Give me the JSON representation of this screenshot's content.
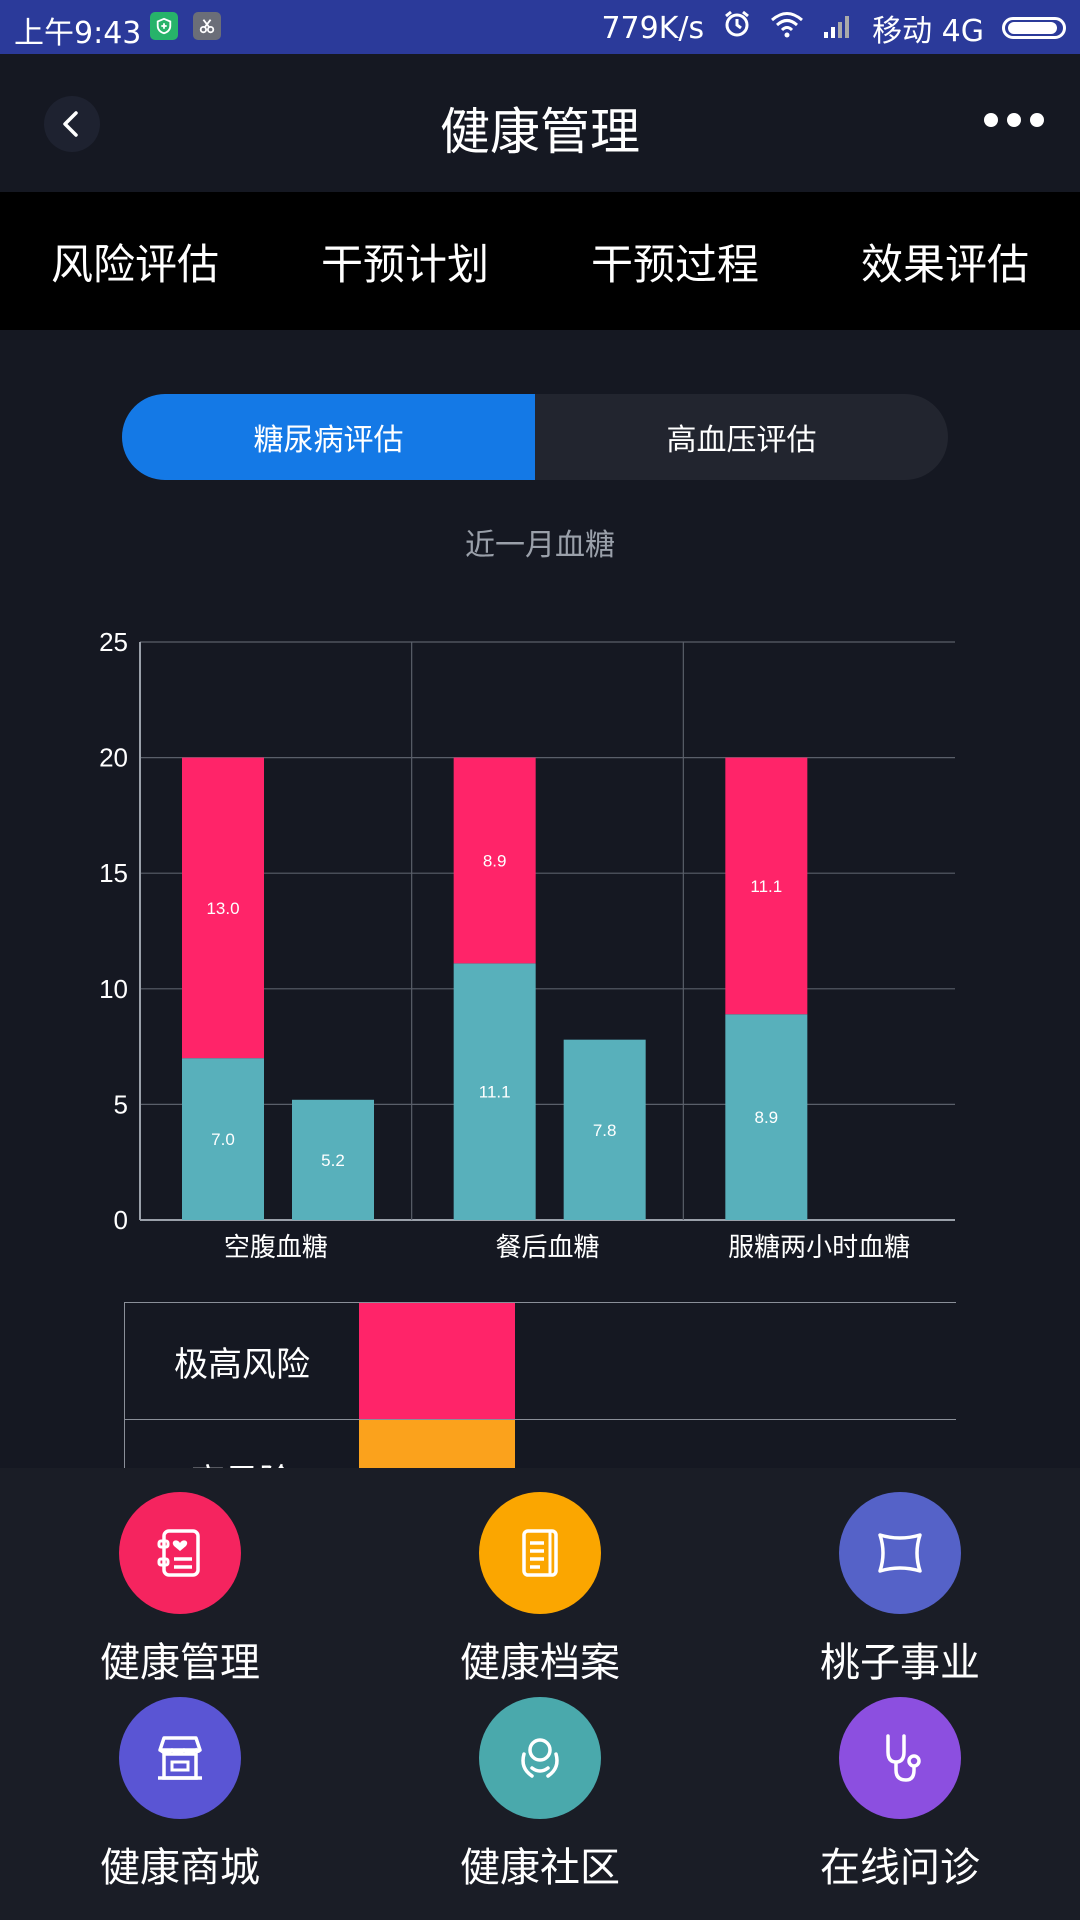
{
  "status_bar": {
    "time": "上午9:43",
    "speed": "779K/s",
    "carrier": "移动 4G"
  },
  "header": {
    "title": "健康管理"
  },
  "tabs": [
    {
      "label": "风险评估"
    },
    {
      "label": "干预计划"
    },
    {
      "label": "干预过程"
    },
    {
      "label": "效果评估"
    }
  ],
  "segment": {
    "options": [
      {
        "label": "糖尿病评估",
        "active": true
      },
      {
        "label": "高血压评估",
        "active": false
      }
    ]
  },
  "chart_title": "近一月血糖",
  "chart_data": {
    "type": "bar",
    "stacked": true,
    "categories": [
      "空腹血糖",
      "餐后血糖",
      "服糖两小时血糖"
    ],
    "ylim": [
      0,
      25
    ],
    "yticks": [
      0,
      5,
      10,
      15,
      20,
      25
    ],
    "grid": true,
    "groups": [
      {
        "category": "空腹血糖",
        "bars": [
          {
            "segments": [
              {
                "value": 7.0,
                "label": "7.0",
                "color": "#58b0bb"
              },
              {
                "value": 13.0,
                "label": "13.0",
                "color": "#ff2469"
              }
            ]
          },
          {
            "segments": [
              {
                "value": 5.2,
                "label": "5.2",
                "color": "#58b0bb"
              }
            ]
          }
        ]
      },
      {
        "category": "餐后血糖",
        "bars": [
          {
            "segments": [
              {
                "value": 11.1,
                "label": "11.1",
                "color": "#58b0bb"
              },
              {
                "value": 8.9,
                "label": "8.9",
                "color": "#ff2469"
              }
            ]
          },
          {
            "segments": [
              {
                "value": 7.8,
                "label": "7.8",
                "color": "#58b0bb"
              }
            ]
          }
        ]
      },
      {
        "category": "服糖两小时血糖",
        "bars": [
          {
            "segments": [
              {
                "value": 8.9,
                "label": "8.9",
                "color": "#58b0bb"
              },
              {
                "value": 11.1,
                "label": "11.1",
                "color": "#ff2469"
              }
            ]
          }
        ]
      }
    ]
  },
  "risk_legend": [
    {
      "label": "极高风险",
      "color": "#ff2469"
    },
    {
      "label": "高风险",
      "color": "#fba21c"
    }
  ],
  "bottom_nav": [
    {
      "label": "健康管理",
      "color": "#f5245f",
      "icon": "health-record-icon"
    },
    {
      "label": "健康档案",
      "color": "#fba600",
      "icon": "file-icon"
    },
    {
      "label": "桃子事业",
      "color": "#5562c8",
      "icon": "pillow-icon"
    },
    {
      "label": "健康商城",
      "color": "#5a55d4",
      "icon": "shop-icon"
    },
    {
      "label": "健康社区",
      "color": "#4aa9ac",
      "icon": "community-icon"
    },
    {
      "label": "在线问诊",
      "color": "#8c4fe0",
      "icon": "stethoscope-icon"
    }
  ]
}
